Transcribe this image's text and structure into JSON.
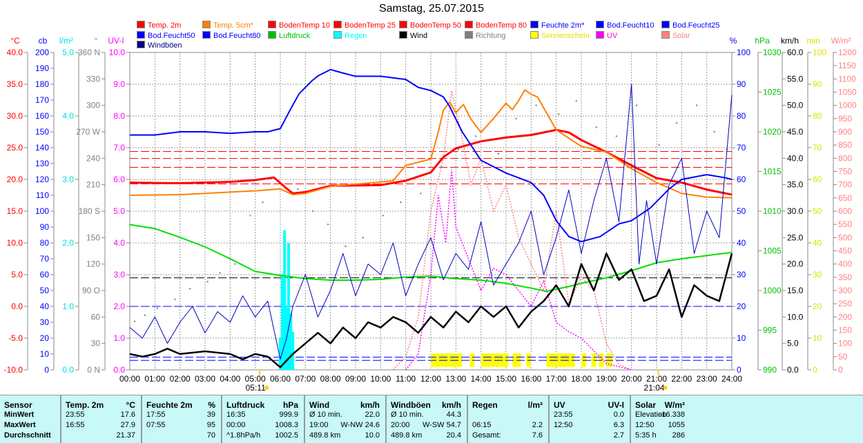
{
  "title": "Samstag, 25.07.2015",
  "legend": [
    {
      "label": "Temp. 2m",
      "color": "#ff0000"
    },
    {
      "label": "Temp. 5cm*",
      "color": "#ff8000"
    },
    {
      "label": "BodenTemp 10",
      "color": "#ff0000"
    },
    {
      "label": "BodenTemp 25",
      "color": "#ff0000"
    },
    {
      "label": "BodenTemp 50",
      "color": "#ff0000"
    },
    {
      "label": "BodenTemp 80",
      "color": "#ff0000"
    },
    {
      "label": "Feuchte 2m*",
      "color": "#0000ff"
    },
    {
      "label": "Bod.Feucht10",
      "color": "#0000ff"
    },
    {
      "label": "Bod.Feucht25",
      "color": "#0000ff"
    },
    {
      "label": "Bod.Feucht50",
      "color": "#0000ff"
    },
    {
      "label": "Bod.Feucht80",
      "color": "#0000ff"
    },
    {
      "label": "Luftdruck",
      "color": "#00c000"
    },
    {
      "label": "Regen",
      "color": "#00ffff"
    },
    {
      "label": "Wind",
      "color": "#000000"
    },
    {
      "label": "Richtung",
      "color": "#808080"
    },
    {
      "label": "Sonnenschein",
      "color": "#ffff00"
    },
    {
      "label": "UV",
      "color": "#ff00ff"
    },
    {
      "label": "Solar",
      "color": "#ff8080"
    },
    {
      "label": "Windböen",
      "color": "#000080"
    }
  ],
  "chart_data": {
    "type": "line",
    "title": "Samstag, 25.07.2015",
    "x_range": [
      0,
      24
    ],
    "x_ticks": [
      "00:00",
      "01:00",
      "02:00",
      "03:00",
      "04:00",
      "05:00",
      "06:00",
      "07:00",
      "08:00",
      "09:00",
      "10:00",
      "11:00",
      "12:00",
      "13:00",
      "14:00",
      "15:00",
      "16:00",
      "17:00",
      "18:00",
      "19:00",
      "20:00",
      "21:00",
      "22:00",
      "23:00",
      "24:00"
    ],
    "sunrise": {
      "label": "05:11",
      "hour": 5.18
    },
    "sunset": {
      "label": "21:04",
      "hour": 21.07
    },
    "axes": [
      {
        "unit": "°C",
        "color": "#ff0000",
        "range": [
          -10,
          40
        ],
        "labels": [
          "40.0",
          "35.0",
          "30.0",
          "25.0",
          "20.0",
          "15.0",
          "10.0",
          "5.0",
          "0.0",
          "-5.0",
          "-10.0"
        ]
      },
      {
        "unit": "cb",
        "color": "#0000ff",
        "range": [
          0,
          200
        ],
        "labels": [
          "200",
          "190",
          "180",
          "170",
          "160",
          "150",
          "140",
          "130",
          "120",
          "110",
          "100",
          "90",
          "80",
          "70",
          "60",
          "50",
          "40",
          "30",
          "20",
          "10",
          "0"
        ]
      },
      {
        "unit": "l/m²",
        "color": "#00e0e0",
        "range": [
          0,
          5
        ],
        "labels": [
          "5.0",
          "4.0",
          "3.0",
          "2.0",
          "1.0",
          "0.0"
        ]
      },
      {
        "unit": "°",
        "color": "#808080",
        "range": [
          0,
          360
        ],
        "labels": [
          "360 N",
          "330",
          "300",
          "270 W",
          "240",
          "210",
          "180 S",
          "150",
          "120",
          "90 O",
          "60",
          "30",
          "0 N"
        ]
      },
      {
        "unit": "UV-I",
        "color": "#ff00ff",
        "range": [
          0,
          10
        ],
        "labels": [
          "10.0",
          "9.0",
          "8.0",
          "7.0",
          "6.0",
          "5.0",
          "4.0",
          "3.0",
          "2.0",
          "1.0",
          "0.0"
        ]
      },
      {
        "unit": "%",
        "color": "#0000ff",
        "range": [
          0,
          100
        ],
        "labels": [
          "100",
          "90",
          "80",
          "70",
          "60",
          "50",
          "40",
          "30",
          "20",
          "10",
          "0"
        ]
      },
      {
        "unit": "hPa",
        "color": "#00c000",
        "range": [
          990,
          1030
        ],
        "labels": [
          "1030",
          "1025",
          "1020",
          "1015",
          "1010",
          "1005",
          "1000",
          "995",
          "990"
        ]
      },
      {
        "unit": "km/h",
        "color": "#000000",
        "range": [
          0,
          60
        ],
        "labels": [
          "60.0",
          "55.0",
          "50.0",
          "45.0",
          "40.0",
          "35.0",
          "30.0",
          "25.0",
          "20.0",
          "15.0",
          "10.0",
          "5.0",
          "0.0"
        ]
      },
      {
        "unit": "min",
        "color": "#e0e000",
        "range": [
          0,
          100
        ],
        "labels": [
          "100",
          "90",
          "80",
          "70",
          "60",
          "50",
          "40",
          "30",
          "20",
          "10",
          "0"
        ]
      },
      {
        "unit": "W/m²",
        "color": "#ff8080",
        "range": [
          0,
          1200
        ],
        "labels": [
          "1200",
          "1150",
          "1100",
          "1050",
          "1000",
          "950",
          "900",
          "850",
          "800",
          "750",
          "700",
          "650",
          "600",
          "550",
          "500",
          "450",
          "400",
          "350",
          "300",
          "250",
          "200",
          "150",
          "100",
          "50",
          "0"
        ]
      }
    ],
    "series": [
      {
        "name": "Temp. 2m",
        "axis": 0,
        "color": "#ff0000",
        "width": 3,
        "x": [
          0,
          2,
          4,
          5,
          5.75,
          6.3,
          6.5,
          7,
          8,
          10,
          11,
          12,
          12.5,
          13,
          14,
          15,
          16,
          17,
          17.5,
          18,
          19,
          20,
          21,
          22,
          23,
          24
        ],
        "y": [
          19.5,
          19.4,
          19.6,
          19.9,
          20.3,
          18.4,
          17.8,
          18.0,
          19.0,
          19.1,
          19.8,
          21.1,
          23.5,
          24.9,
          26.0,
          26.6,
          27.0,
          27.8,
          27.4,
          26.2,
          24.3,
          22.2,
          20.2,
          19.5,
          18.4,
          17.6
        ]
      },
      {
        "name": "Temp. 5cm*",
        "axis": 0,
        "color": "#ff8000",
        "width": 2,
        "x": [
          0,
          2,
          4,
          5,
          6,
          6.5,
          7,
          8,
          10,
          10.5,
          11,
          12,
          12.3,
          12.5,
          12.75,
          13,
          13.3,
          13.6,
          14,
          14.5,
          15,
          15.25,
          15.5,
          15.75,
          16,
          16.25,
          17,
          18,
          19,
          20,
          21,
          22,
          23,
          24
        ],
        "y": [
          17.5,
          17.6,
          18.0,
          18.2,
          18.5,
          17.6,
          17.8,
          18.9,
          19.6,
          19.8,
          22.2,
          23.2,
          27.5,
          30.9,
          32.2,
          30.5,
          31.8,
          29.5,
          27.4,
          29.6,
          32.0,
          31.0,
          32.4,
          34.1,
          33.4,
          33.0,
          27.8,
          25.2,
          24.3,
          21.7,
          19.5,
          17.8,
          17.2,
          17.1
        ]
      },
      {
        "name": "Feuchte 2m*",
        "axis": 5,
        "color": "#0000ff",
        "width": 2,
        "x": [
          0,
          1,
          2,
          3,
          4,
          5,
          5.5,
          6,
          6.4,
          6.75,
          7.25,
          7.5,
          8,
          8.5,
          9,
          10,
          11,
          11.5,
          12,
          12.5,
          12.75,
          13.25,
          14,
          15,
          16,
          16.5,
          17,
          17.5,
          18,
          18.75,
          19.5,
          20,
          20.75,
          21.5,
          22,
          23,
          23.75,
          24
        ],
        "y": [
          74,
          74,
          75,
          75,
          74.5,
          75,
          75,
          76,
          82,
          87,
          91,
          92.6,
          94.6,
          93.5,
          92.5,
          92.5,
          91.5,
          89,
          88,
          86,
          83,
          75,
          66,
          62,
          59,
          55,
          47,
          42,
          40.4,
          42,
          46,
          47,
          51,
          57,
          60,
          61.5,
          60.5,
          60
        ]
      },
      {
        "name": "Luftdruck",
        "axis": 6,
        "color": "#00e000",
        "width": 2,
        "x": [
          0,
          1,
          2,
          3,
          4,
          5,
          6,
          7,
          8,
          9,
          10,
          11,
          12,
          13,
          14,
          15,
          16,
          16.6,
          17.5,
          18,
          19,
          20,
          21,
          22,
          23,
          24
        ],
        "y": [
          1008.3,
          1007.8,
          1006.7,
          1005.5,
          1004.0,
          1002.4,
          1001.9,
          1001.5,
          1001.3,
          1001.3,
          1001.4,
          1001.7,
          1001.8,
          1001.5,
          1001.3,
          1000.9,
          1000.3,
          999.9,
          1000.5,
          1000.9,
          1001.6,
          1002.5,
          1003.5,
          1004.0,
          1004.4,
          1004.8
        ]
      },
      {
        "name": "Windböen",
        "axis": 7,
        "color": "#0000c0",
        "width": 1,
        "x": [
          0,
          0.5,
          1,
          1.5,
          2,
          2.5,
          3,
          3.5,
          4,
          4.5,
          5,
          5.5,
          6,
          6.25,
          6.5,
          7,
          7.5,
          8,
          8.5,
          9,
          9.5,
          10,
          10.5,
          11,
          11.5,
          12,
          12.5,
          13,
          13.5,
          14,
          14.5,
          15,
          15.5,
          16,
          16.5,
          17,
          17.5,
          18,
          18.5,
          19,
          19.5,
          20,
          20.3,
          20.6,
          21,
          21.5,
          22,
          22.5,
          23,
          23.5,
          24
        ],
        "y": [
          8,
          6,
          10,
          5,
          9,
          12,
          7,
          11,
          9,
          14,
          10,
          13,
          2,
          6,
          12,
          18,
          10,
          15,
          22,
          14,
          20,
          18,
          24,
          14,
          20,
          25,
          17,
          22,
          19,
          28,
          16,
          20,
          24,
          30,
          18,
          25,
          34,
          22,
          32,
          40,
          28,
          54,
          20,
          32,
          20,
          35,
          40,
          22,
          30,
          25,
          52
        ]
      },
      {
        "name": "Wind",
        "axis": 7,
        "color": "#000000",
        "width": 2.5,
        "x": [
          0,
          0.5,
          1,
          1.5,
          2,
          3,
          4,
          4.5,
          5,
          5.5,
          6,
          6.5,
          7,
          7.5,
          8,
          8.5,
          9,
          9.5,
          10,
          10.5,
          11,
          11.5,
          12,
          12.5,
          13,
          13.5,
          14,
          14.5,
          15,
          15.5,
          16,
          16.5,
          17,
          17.5,
          18,
          18.5,
          19,
          19.5,
          20,
          20.5,
          21,
          21.5,
          22,
          22.5,
          23,
          23.5,
          24
        ],
        "y": [
          3,
          2.5,
          3,
          4,
          3,
          3.5,
          3,
          2,
          3,
          2.5,
          0.5,
          3,
          5,
          7,
          5,
          8,
          6,
          9,
          8,
          10,
          9,
          7,
          10,
          8,
          11,
          9,
          12,
          10,
          12,
          8,
          11,
          13,
          16,
          12,
          20,
          15,
          22,
          17,
          19,
          13,
          14,
          19,
          10,
          16,
          14,
          13,
          22
        ]
      }
    ],
    "uv": {
      "axis": 4,
      "color": "#ff00ff",
      "x": [
        11,
        11.5,
        12,
        12.3,
        12.6,
        12.83,
        13,
        13.5,
        14,
        14.5,
        15,
        15.5,
        16,
        16.5,
        17,
        17.5,
        18,
        18.5,
        19,
        19.5,
        20
      ],
      "y": [
        0,
        0.5,
        3,
        5.5,
        4,
        6.3,
        4.5,
        3.5,
        2.5,
        3.2,
        3,
        2.5,
        2,
        2.8,
        1.5,
        1.2,
        1,
        0.6,
        0.2,
        0.1,
        0
      ]
    },
    "solar": {
      "axis": 9,
      "color": "#ff8080",
      "x": [
        10.5,
        11,
        11.5,
        12,
        12.5,
        12.83,
        13.2,
        13.6,
        14,
        14.5,
        15,
        15.5,
        16,
        16.5,
        17,
        17.5,
        18,
        18.5,
        19,
        19.5,
        20
      ],
      "y": [
        0,
        50,
        200,
        600,
        800,
        1055,
        900,
        700,
        800,
        600,
        700,
        500,
        400,
        300,
        600,
        250,
        350,
        300,
        100,
        20,
        0
      ]
    },
    "rain": {
      "axis": 2,
      "color": "#00ffff",
      "x": [
        6.0,
        6.08,
        6.17,
        6.25,
        6.33,
        6.42,
        6.5
      ],
      "y": [
        0.5,
        1.5,
        2.2,
        1.0,
        2.0,
        0.9,
        0.6
      ]
    },
    "sunshine": {
      "color": "#ffff00",
      "intervals": [
        [
          12.0,
          13.25
        ],
        [
          13.55,
          13.75
        ],
        [
          14.0,
          15.1
        ],
        [
          15.25,
          15.6
        ],
        [
          15.8,
          16.0
        ],
        [
          16.6,
          17.75
        ],
        [
          18.0,
          18.2
        ],
        [
          18.4,
          18.6
        ],
        [
          18.7,
          18.9
        ],
        [
          19.0,
          19.25
        ]
      ]
    },
    "soil": [
      {
        "axis": 0,
        "color": "#ff0000",
        "y": 24.4
      },
      {
        "axis": 0,
        "color": "#ff0000",
        "y": 23.3
      },
      {
        "axis": 0,
        "color": "#ff0000",
        "y": 21.9
      },
      {
        "axis": 0,
        "color": "#ff0000",
        "y": 19.3
      },
      {
        "axis": 5,
        "color": "#0000ff",
        "y": 20
      },
      {
        "axis": 5,
        "color": "#0000ff",
        "y": 4
      },
      {
        "axis": 5,
        "color": "#0000ff",
        "y": 3
      },
      {
        "axis": 5,
        "color": "#000000",
        "y": 29
      }
    ],
    "direction": {
      "axis": 3,
      "color": "#808080",
      "x": [
        0.2,
        0.6,
        1.1,
        1.8,
        2.4,
        3.1,
        3.6,
        4.2,
        4.8,
        5.3,
        6.7,
        7.3,
        7.9,
        8.6,
        9.3,
        10.1,
        10.8,
        11.6,
        12.4,
        13.1,
        13.8,
        14.7,
        15.4,
        16.2,
        17.1,
        17.8,
        18.6,
        19.4,
        20.2,
        21.1,
        21.8,
        22.6,
        23.3,
        23.8
      ],
      "y": [
        55,
        62,
        70,
        80,
        92,
        100,
        110,
        120,
        175,
        190,
        205,
        180,
        165,
        140,
        150,
        175,
        190,
        200,
        230,
        250,
        265,
        245,
        285,
        300,
        290,
        305,
        275,
        265,
        300,
        255,
        280,
        300,
        270,
        250
      ]
    }
  },
  "stats": [
    {
      "header": [
        "Sensor",
        ""
      ],
      "rows": [
        [
          "MinWert",
          ""
        ],
        [
          "MaxWert",
          ""
        ],
        [
          "Durchschnitt",
          ""
        ]
      ],
      "boldrows": true
    },
    {
      "header": [
        "Temp. 2m",
        "°C"
      ],
      "rows": [
        [
          "23:55",
          "17.6"
        ],
        [
          "16:55",
          "27.9"
        ],
        [
          "",
          "21.37"
        ]
      ]
    },
    {
      "header": [
        "Feuchte 2m",
        "%"
      ],
      "rows": [
        [
          "17:55",
          "39"
        ],
        [
          "07:55",
          "95"
        ],
        [
          "",
          "70"
        ]
      ]
    },
    {
      "header": [
        "Luftdruck",
        "hPa"
      ],
      "rows": [
        [
          "16:35",
          "999.9"
        ],
        [
          "00:00",
          "1008.3"
        ],
        [
          "^1.8hPa/h",
          "1002.5"
        ]
      ]
    },
    {
      "header": [
        "Wind",
        "km/h"
      ],
      "rows": [
        [
          "Ø 10 min.",
          "22.0"
        ],
        [
          "19:00",
          "W-NW 24.6"
        ],
        [
          "489.8 km",
          "10.0"
        ]
      ]
    },
    {
      "header": [
        "Windböen",
        "km/h"
      ],
      "rows": [
        [
          "Ø 10 min.",
          "44.3"
        ],
        [
          "20:00",
          "W-SW 54.7"
        ],
        [
          "489.8 km",
          "20.4"
        ]
      ]
    },
    {
      "header": [
        "Regen",
        "l/m²"
      ],
      "rows": [
        [
          "",
          ""
        ],
        [
          "06:15",
          "2.2"
        ],
        [
          "Gesamt:",
          "7.6"
        ]
      ]
    },
    {
      "header": [
        "UV",
        "UV-I"
      ],
      "rows": [
        [
          "23:55",
          "0.0"
        ],
        [
          "12:50",
          "6.3"
        ],
        [
          "",
          "2.7"
        ]
      ]
    },
    {
      "header": [
        "Solar",
        "W/m²"
      ],
      "rows": [
        [
          "Elevation",
          "-16.338"
        ],
        [
          "12:50",
          "1055"
        ],
        [
          "5:35 h",
          "286"
        ]
      ]
    }
  ]
}
